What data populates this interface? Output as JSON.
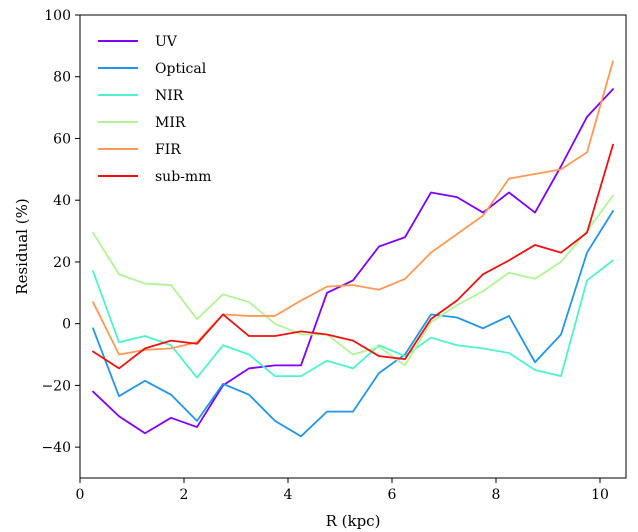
{
  "chart_data": {
    "type": "line",
    "title": "",
    "xlabel": "R (kpc)",
    "ylabel": "Residual (%)",
    "xlim": [
      0,
      10.5
    ],
    "ylim": [
      -50,
      100
    ],
    "xticks": [
      0,
      2,
      4,
      6,
      8,
      10
    ],
    "yticks": [
      -40,
      -20,
      0,
      20,
      40,
      60,
      80,
      100
    ],
    "xtick_labels": [
      "0",
      "2",
      "4",
      "6",
      "8",
      "10"
    ],
    "ytick_labels": [
      "−40",
      "−20",
      "0",
      "20",
      "40",
      "60",
      "80",
      "100"
    ],
    "grid": false,
    "legend_position": "top-left",
    "x": [
      0.25,
      0.75,
      1.25,
      1.75,
      2.25,
      2.75,
      3.25,
      3.75,
      4.25,
      4.75,
      5.25,
      5.75,
      6.25,
      6.75,
      7.25,
      7.75,
      8.25,
      8.75,
      9.25,
      9.75,
      10.25
    ],
    "series": [
      {
        "name": "UV",
        "color": "#7f00ff",
        "values": [
          -22,
          -30,
          -35.5,
          -30.5,
          -33.5,
          -20,
          -14.5,
          -13.5,
          -13.5,
          10,
          14,
          25,
          28,
          42.5,
          41,
          36,
          42.5,
          36,
          51,
          67,
          76
        ]
      },
      {
        "name": "Optical",
        "color": "#2196e8",
        "values": [
          -1.5,
          -23.5,
          -18.5,
          -23,
          -31.5,
          -19.5,
          -23,
          -31.5,
          -36.5,
          -28.5,
          -28.5,
          -16,
          -10,
          3,
          2,
          -1.5,
          2.5,
          -12.5,
          -3.5,
          23,
          36.5
        ]
      },
      {
        "name": "NIR",
        "color": "#4df3ce",
        "values": [
          17,
          -6,
          -4,
          -7,
          -17.5,
          -7,
          -10,
          -17,
          -17,
          -12,
          -14.5,
          -7,
          -10.5,
          -4.5,
          -7,
          -8,
          -9.5,
          -15,
          -17,
          14,
          20.5
        ]
      },
      {
        "name": "MIR",
        "color": "#b2f396",
        "values": [
          29.5,
          16,
          13,
          12.5,
          1.5,
          9.5,
          7,
          0,
          -3.5,
          -3.5,
          -10,
          -7.5,
          -13.5,
          0.5,
          6,
          10.5,
          16.5,
          14.5,
          20,
          30,
          41.5
        ]
      },
      {
        "name": "FIR",
        "color": "#ff9955",
        "values": [
          7,
          -10,
          -8.5,
          -8,
          -6,
          3,
          2.5,
          2.5,
          7.5,
          12,
          12.5,
          11,
          14.5,
          23,
          29,
          35,
          47,
          48.5,
          50,
          55.5,
          85
        ]
      },
      {
        "name": "sub-mm",
        "color": "#ee1111",
        "values": [
          -9,
          -14.5,
          -8,
          -5.5,
          -6.5,
          3,
          -4,
          -4,
          -2.5,
          -3.5,
          -5.5,
          -10.5,
          -11.5,
          1.5,
          7.5,
          16,
          20.5,
          25.5,
          23,
          29.5,
          58
        ]
      }
    ]
  }
}
